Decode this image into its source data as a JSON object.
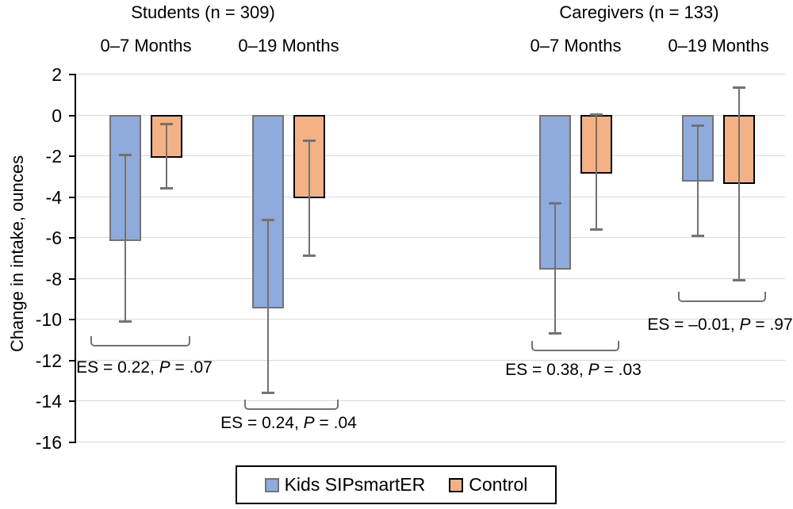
{
  "chart_data": {
    "type": "bar",
    "title": "",
    "ylabel": "Change in intake, ounces",
    "ylim": [
      -16,
      2
    ],
    "ytick_step": 2,
    "yticks": [
      2,
      0,
      -2,
      -4,
      -6,
      -8,
      -10,
      -12,
      -14,
      -16
    ],
    "grid": "horizontal",
    "legend_position": "bottom",
    "series": [
      {
        "name": "Kids SIPsmartER",
        "color": "#8FAADC",
        "border_color": "#767171"
      },
      {
        "name": "Control",
        "color": "#F4B183",
        "border_color": "#000000"
      }
    ],
    "panels": [
      {
        "label": "Students (n = 309)",
        "groups": [
          {
            "label": "0–7 Months",
            "bars": [
              {
                "series": "Kids SIPsmartER",
                "value": -6.1,
                "ci_high": -1.9,
                "ci_low": -10.1
              },
              {
                "series": "Control",
                "value": -2.0,
                "ci_high": -0.4,
                "ci_low": -3.6
              }
            ],
            "annotation": {
              "text": "ES = 0.22, P = .07",
              "pre": "ES = 0.22, ",
              "italic": "P",
              "post": " = .07"
            }
          },
          {
            "label": "0–19 Months",
            "bars": [
              {
                "series": "Kids SIPsmartER",
                "value": -9.4,
                "ci_high": -5.1,
                "ci_low": -13.6
              },
              {
                "series": "Control",
                "value": -4.0,
                "ci_high": -1.2,
                "ci_low": -6.9
              }
            ],
            "annotation": {
              "text": "ES = 0.24, P = .04",
              "pre": "ES = 0.24, ",
              "italic": "P",
              "post": " = .04"
            }
          }
        ]
      },
      {
        "label": "Caregivers (n = 133)",
        "groups": [
          {
            "label": "0–7 Months",
            "bars": [
              {
                "series": "Kids SIPsmartER",
                "value": -7.5,
                "ci_high": -4.3,
                "ci_low": -10.7
              },
              {
                "series": "Control",
                "value": -2.8,
                "ci_high": 0.05,
                "ci_low": -5.6
              }
            ],
            "annotation": {
              "text": "ES = 0.38, P = .03",
              "pre": "ES = 0.38, ",
              "italic": "P",
              "post": " = .03"
            }
          },
          {
            "label": "0–19 Months",
            "bars": [
              {
                "series": "Kids SIPsmartER",
                "value": -3.2,
                "ci_high": -0.5,
                "ci_low": -5.9
              },
              {
                "series": "Control",
                "value": -3.3,
                "ci_high": 1.4,
                "ci_low": -8.1
              }
            ],
            "annotation": {
              "text": "ES = –0.01, P = .97",
              "pre": "ES = –0.01, ",
              "italic": "P",
              "post": " = .97"
            }
          }
        ]
      }
    ]
  },
  "colors": {
    "background": "#FFFFFF",
    "gridline": "#D9D9D9",
    "axis": "#000000",
    "error_bar": "#767171",
    "bracket": "#767171",
    "text": "#000000"
  }
}
